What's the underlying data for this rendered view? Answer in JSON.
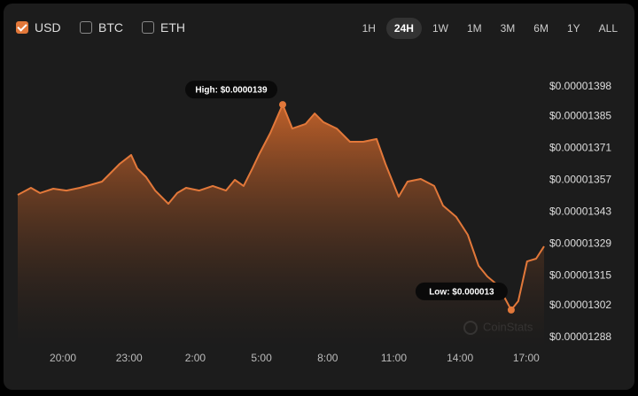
{
  "controls": {
    "currencies": [
      {
        "label": "USD",
        "checked": true
      },
      {
        "label": "BTC",
        "checked": false
      },
      {
        "label": "ETH",
        "checked": false
      }
    ],
    "ranges": [
      "1H",
      "24H",
      "1W",
      "1M",
      "3M",
      "6M",
      "1Y",
      "ALL"
    ],
    "active_range": "24H"
  },
  "chart_data": {
    "type": "area",
    "color": "#e2783a",
    "watermark": "CoinStats",
    "annotations": [
      {
        "text": "High: $0.0000139",
        "index": 25
      },
      {
        "text": "Low: $0.000013",
        "index": 45
      }
    ],
    "x": [
      17.95,
      18.55,
      18.96,
      19.56,
      20.16,
      20.76,
      21.37,
      21.77,
      22.17,
      22.57,
      23.09,
      23.37,
      23.77,
      24.18,
      24.78,
      25.18,
      25.58,
      26.18,
      26.79,
      27.39,
      27.79,
      28.19,
      28.59,
      28.88,
      29.4,
      29.96,
      30.4,
      31.0,
      31.41,
      31.81,
      32.41,
      33.01,
      33.61,
      34.22,
      34.62,
      35.22,
      35.62,
      36.22,
      36.83,
      37.23,
      37.83,
      38.35,
      38.84,
      39.24,
      39.72,
      40.32,
      40.64,
      41.04,
      41.45,
      41.81
    ],
    "series": [
      {
        "name": "USD",
        "values": [
          1.3506e-05,
          1.3537e-05,
          1.3514e-05,
          1.3533e-05,
          1.3525e-05,
          1.3537e-05,
          1.3553e-05,
          1.3564e-05,
          1.3603e-05,
          1.3642e-05,
          1.3681e-05,
          1.3622e-05,
          1.3584e-05,
          1.3525e-05,
          1.3467e-05,
          1.3514e-05,
          1.3537e-05,
          1.3525e-05,
          1.3545e-05,
          1.3525e-05,
          1.3572e-05,
          1.3545e-05,
          1.3622e-05,
          1.3681e-05,
          1.3778e-05,
          1.3902e-05,
          1.3797e-05,
          1.3817e-05,
          1.3863e-05,
          1.3825e-05,
          1.3797e-05,
          1.3739e-05,
          1.3739e-05,
          1.3751e-05,
          1.3642e-05,
          1.3498e-05,
          1.3564e-05,
          1.3576e-05,
          1.3545e-05,
          1.3459e-05,
          1.3409e-05,
          1.3331e-05,
          1.3195e-05,
          1.3148e-05,
          1.3109e-05,
          1.3001e-05,
          1.304e-05,
          1.3214e-05,
          1.3226e-05,
          1.328e-05
        ]
      }
    ],
    "xlim": [
      17.95,
      41.81
    ],
    "xticks": [
      {
        "value": 20,
        "label": "20:00"
      },
      {
        "value": 23,
        "label": "23:00"
      },
      {
        "value": 26,
        "label": "2:00"
      },
      {
        "value": 29,
        "label": "5:00"
      },
      {
        "value": 32,
        "label": "8:00"
      },
      {
        "value": 35,
        "label": "11:00"
      },
      {
        "value": 38,
        "label": "14:00"
      },
      {
        "value": 41,
        "label": "17:00"
      }
    ],
    "ylim": [
      1.28e-05,
      1.405e-05
    ],
    "yticks": [
      {
        "value": 1.398e-05,
        "label": "$0.00001398"
      },
      {
        "value": 1.385e-05,
        "label": "$0.00001385"
      },
      {
        "value": 1.371e-05,
        "label": "$0.00001371"
      },
      {
        "value": 1.357e-05,
        "label": "$0.00001357"
      },
      {
        "value": 1.343e-05,
        "label": "$0.00001343"
      },
      {
        "value": 1.329e-05,
        "label": "$0.00001329"
      },
      {
        "value": 1.315e-05,
        "label": "$0.00001315"
      },
      {
        "value": 1.302e-05,
        "label": "$0.00001302"
      },
      {
        "value": 1.288e-05,
        "label": "$0.00001288"
      }
    ]
  }
}
